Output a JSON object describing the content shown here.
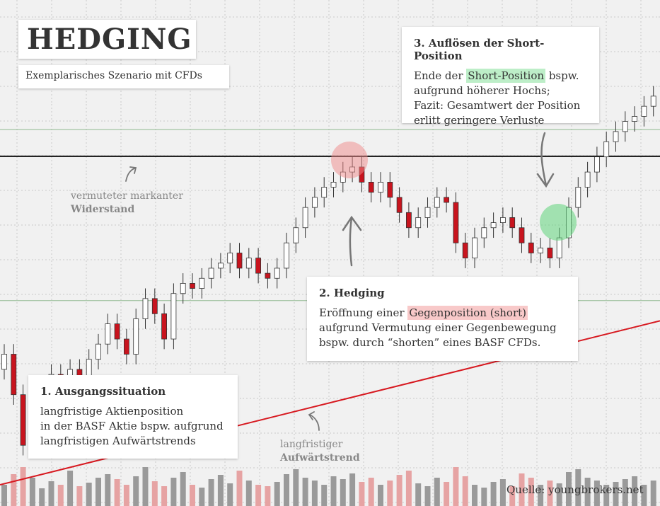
{
  "title": "HEDGING",
  "subtitle": "Exemplarisches Szenario mit CFDs",
  "boxes": [
    {
      "heading": "3. Auflösen der Short-Position",
      "lines": [
        [
          {
            "text": "Ende der "
          },
          {
            "text": "Short-Position",
            "highlight": "#bdeec8"
          },
          {
            "text": " bspw."
          }
        ],
        [
          {
            "text": "aufgrund höherer Hochs;"
          }
        ],
        [
          {
            "text": "Fazit: Gesamtwert der Position"
          }
        ],
        [
          {
            "text": "erlitt geringere Verluste"
          }
        ]
      ]
    },
    {
      "heading": "2. Hedging",
      "lines": [
        [
          {
            "text": "Eröffnung einer "
          },
          {
            "text": "Gegenposition (short)",
            "highlight": "#f8c9c9"
          }
        ],
        [
          {
            "text": "aufgrund Vermutung einer Gegenbewegung"
          }
        ],
        [
          {
            "text": "bspw. durch “shorten” eines BASF CFDs."
          }
        ]
      ]
    },
    {
      "heading": "1. Ausgangssituation",
      "lines": [
        [
          {
            "text": "langfristige Aktienposition"
          }
        ],
        [
          {
            "text": "in der BASF Aktie bspw. aufgrund"
          }
        ],
        [
          {
            "text": "langfristigen Aufwärtstrends"
          }
        ]
      ]
    }
  ],
  "annotations": [
    {
      "text": "vermuteter markanter",
      "bold": "Widerstand"
    },
    {
      "text": "langfristiger",
      "bold": "Aufwärtstrend"
    }
  ],
  "source": "Quelle: youngbrokers.net",
  "chart_data": {
    "type": "candlestick",
    "ylim": [
      0,
      100
    ],
    "volume_lim": [
      0,
      100
    ],
    "up_color": "#ffffff",
    "down_color": "#c8141e",
    "volume_up_color": "#9a9a9a",
    "volume_down_color": "#e6a3a3",
    "open": [
      27,
      30,
      22,
      12,
      16,
      21,
      26,
      24,
      27,
      25,
      29,
      32,
      36,
      33,
      30,
      37,
      41,
      38,
      33,
      42,
      44,
      43,
      45,
      47,
      48,
      50,
      47,
      49,
      46,
      45,
      47,
      52,
      55,
      59,
      61,
      63,
      64,
      66,
      67,
      64,
      62,
      64,
      61,
      58,
      55,
      57,
      59,
      61,
      60,
      52,
      49,
      53,
      55,
      56,
      57,
      55,
      52,
      50,
      51,
      49,
      53,
      59,
      63,
      66,
      69,
      72,
      74,
      76,
      77,
      79
    ],
    "high": [
      32,
      32,
      24,
      18,
      23,
      28,
      28,
      29,
      29,
      31,
      34,
      38,
      38,
      35,
      39,
      43,
      43,
      40,
      44,
      46,
      46,
      47,
      49,
      50,
      52,
      52,
      51,
      51,
      48,
      49,
      54,
      57,
      61,
      63,
      65,
      66,
      68,
      69,
      69,
      66,
      66,
      66,
      63,
      60,
      59,
      61,
      63,
      63,
      62,
      54,
      55,
      57,
      58,
      59,
      59,
      57,
      54,
      53,
      53,
      55,
      61,
      65,
      68,
      71,
      74,
      76,
      78,
      79,
      81,
      83
    ],
    "low": [
      25,
      20,
      10,
      10,
      14,
      19,
      22,
      22,
      23,
      23,
      27,
      30,
      31,
      28,
      28,
      35,
      36,
      31,
      31,
      40,
      41,
      41,
      43,
      45,
      46,
      45,
      45,
      44,
      43,
      43,
      45,
      50,
      53,
      57,
      59,
      61,
      62,
      64,
      62,
      60,
      60,
      59,
      56,
      53,
      53,
      55,
      57,
      58,
      50,
      47,
      47,
      51,
      53,
      54,
      53,
      50,
      48,
      48,
      47,
      47,
      51,
      57,
      61,
      64,
      67,
      70,
      72,
      74,
      75,
      77
    ],
    "close": [
      30,
      22,
      12,
      16,
      21,
      26,
      24,
      27,
      25,
      29,
      32,
      36,
      33,
      30,
      37,
      41,
      38,
      33,
      42,
      44,
      43,
      45,
      47,
      48,
      50,
      47,
      49,
      46,
      45,
      47,
      52,
      55,
      59,
      61,
      63,
      64,
      66,
      67,
      64,
      62,
      64,
      61,
      58,
      55,
      57,
      59,
      61,
      60,
      52,
      49,
      53,
      55,
      56,
      57,
      55,
      52,
      50,
      51,
      49,
      53,
      59,
      63,
      66,
      69,
      72,
      74,
      76,
      77,
      79,
      81
    ],
    "volume": [
      30,
      45,
      55,
      40,
      25,
      35,
      30,
      50,
      28,
      33,
      40,
      45,
      38,
      30,
      42,
      55,
      35,
      28,
      40,
      48,
      30,
      26,
      38,
      44,
      32,
      50,
      36,
      30,
      28,
      34,
      45,
      52,
      40,
      36,
      30,
      42,
      38,
      46,
      34,
      40,
      30,
      36,
      44,
      50,
      32,
      28,
      40,
      34,
      55,
      42,
      30,
      26,
      34,
      38,
      28,
      46,
      40,
      30,
      36,
      32,
      48,
      52,
      40,
      36,
      30,
      34,
      38,
      42,
      30,
      36
    ],
    "hlines": [
      {
        "value": 74.4,
        "color": "#8fb98f"
      },
      {
        "value": 69.1,
        "color": "#111111"
      },
      {
        "value": 40.6,
        "color": "#8fb98f"
      }
    ],
    "trendline": {
      "values": [
        4.2,
        36.6
      ],
      "color": "#d71920"
    }
  }
}
